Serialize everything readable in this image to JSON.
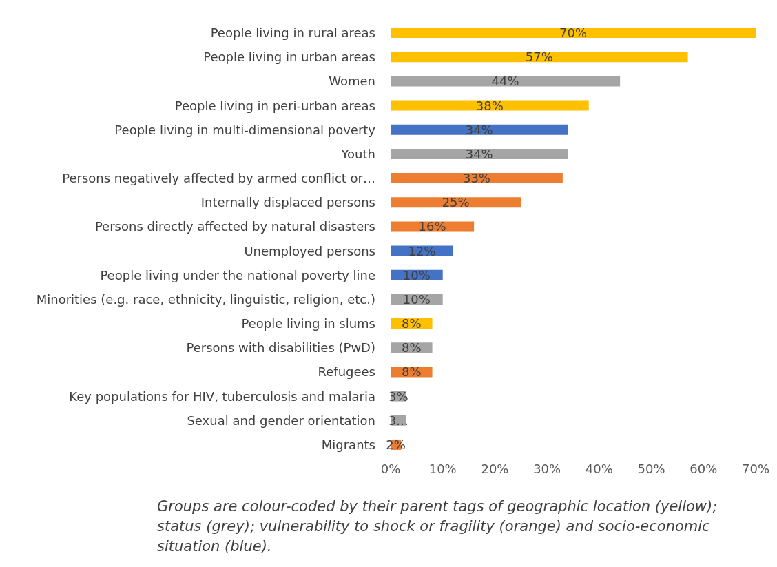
{
  "chart_data": {
    "type": "bar",
    "orientation": "horizontal",
    "categories": [
      "People living in rural areas",
      "People living in urban areas",
      "Women",
      "People living in peri-urban areas",
      "People living in multi-dimensional poverty",
      "Youth",
      "Persons negatively affected by armed conflict or…",
      "Internally displaced persons",
      "Persons directly affected by natural disasters",
      "Unemployed persons",
      "People living under the national poverty line",
      "Minorities (e.g. race, ethnicity, linguistic, religion, etc.)",
      "People living in slums",
      "Persons with disabilities (PwD)",
      "Refugees",
      "Key populations for HIV, tuberculosis and malaria",
      "Sexual and gender orientation",
      "Migrants"
    ],
    "values": [
      70,
      57,
      44,
      38,
      34,
      34,
      33,
      25,
      16,
      12,
      10,
      10,
      8,
      8,
      8,
      3,
      3,
      2
    ],
    "value_labels": [
      "70%",
      "57%",
      "44%",
      "38%",
      "34%",
      "34%",
      "33%",
      "25%",
      "16%",
      "12%",
      "10%",
      "10%",
      "8%",
      "8%",
      "8%",
      "3%",
      "3…",
      "2%"
    ],
    "colors": [
      "#ffc000",
      "#ffc000",
      "#a5a5a5",
      "#ffc000",
      "#4472c4",
      "#a5a5a5",
      "#ed7d31",
      "#ed7d31",
      "#ed7d31",
      "#4472c4",
      "#4472c4",
      "#a5a5a5",
      "#ffc000",
      "#a5a5a5",
      "#ed7d31",
      "#a5a5a5",
      "#a5a5a5",
      "#ed7d31"
    ],
    "xlim": [
      0,
      70
    ],
    "xticks": [
      {
        "value": 0,
        "label": "0%"
      },
      {
        "value": 10,
        "label": "10%"
      },
      {
        "value": 20,
        "label": "20%"
      },
      {
        "value": 30,
        "label": "30%"
      },
      {
        "value": 40,
        "label": "40%"
      },
      {
        "value": 50,
        "label": "50%"
      },
      {
        "value": 60,
        "label": "60%"
      },
      {
        "value": 70,
        "label": "70%"
      }
    ],
    "annotations": [
      "Groups are colour-coded by their parent tags of geographic location (yellow); status (grey); vulnerability to shock or fragility (orange) and socio-economic situation (blue)."
    ]
  }
}
